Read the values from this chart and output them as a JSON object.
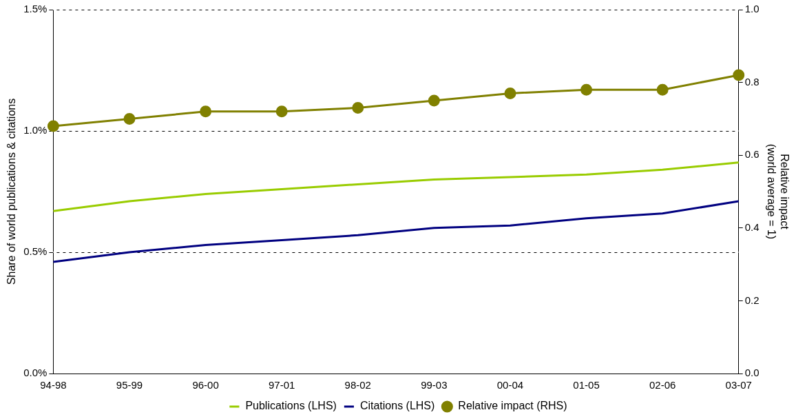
{
  "chart_data": {
    "type": "line",
    "ylabel": "Share of world publications & citations",
    "y2label": "Relative impact\n(world average = 1)",
    "categories": [
      "94-98",
      "95-99",
      "96-00",
      "97-01",
      "98-02",
      "99-03",
      "00-04",
      "01-05",
      "02-06",
      "03-07"
    ],
    "series": [
      {
        "name": "Publications (LHS)",
        "color": "#99cc00",
        "marker": "none",
        "values": [
          0.67,
          0.71,
          0.74,
          0.76,
          0.78,
          0.8,
          0.81,
          0.82,
          0.84,
          0.87
        ]
      },
      {
        "name": "Citations (LHS)",
        "color": "#000080",
        "marker": "none",
        "values": [
          0.46,
          0.5,
          0.53,
          0.55,
          0.57,
          0.6,
          0.61,
          0.64,
          0.66,
          0.71
        ]
      },
      {
        "name": "Relative impact (RHS)",
        "color": "#808000",
        "marker": "circle",
        "axis": "y2",
        "values": [
          0.68,
          0.7,
          0.72,
          0.72,
          0.73,
          0.75,
          0.77,
          0.78,
          0.78,
          0.82
        ]
      }
    ],
    "ylim": [
      0,
      1.5
    ],
    "yticks": [
      {
        "value": 0,
        "label": "0.0%"
      },
      {
        "value": 0.5,
        "label": "0.5%"
      },
      {
        "value": 1.0,
        "label": "1.0%"
      },
      {
        "value": 1.5,
        "label": "1.5%"
      }
    ],
    "y2lim": [
      0,
      1
    ],
    "y2ticks": [
      {
        "value": 0,
        "label": "0.0"
      },
      {
        "value": 0.2,
        "label": "0.2"
      },
      {
        "value": 0.4,
        "label": "0.4"
      },
      {
        "value": 0.6,
        "label": "0.6"
      },
      {
        "value": 0.8,
        "label": "0.8"
      },
      {
        "value": 1,
        "label": "1.0"
      }
    ],
    "grid": "y",
    "line_style": "solid",
    "legend": "bottom"
  }
}
